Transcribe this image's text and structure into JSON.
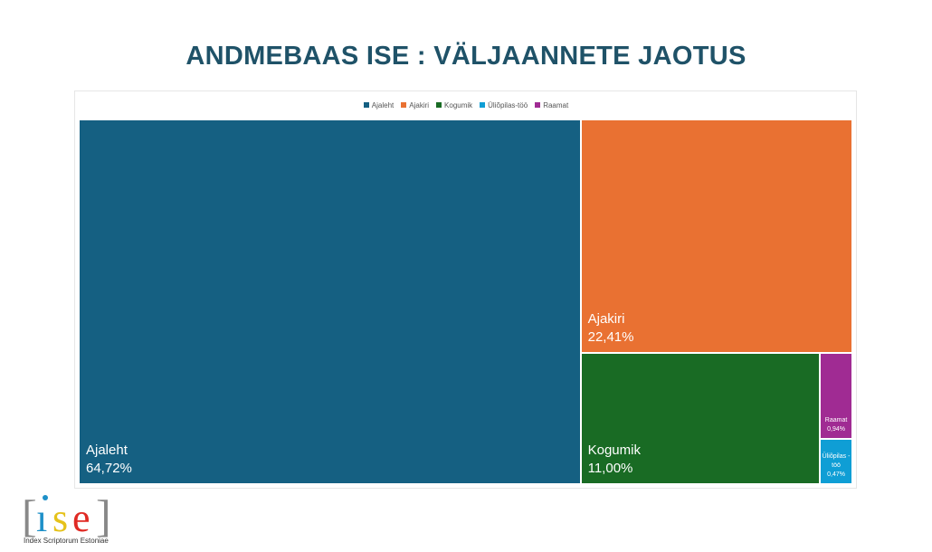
{
  "chart_data": {
    "type": "treemap",
    "title": "ANDMEBAAS ISE : VÄLJAANNETE JAOTUS",
    "legend_position": "top",
    "categories": [
      "Ajaleht",
      "Ajakiri",
      "Kogumik",
      "Üliõpilas-töö",
      "Raamat"
    ],
    "values": [
      64.72,
      22.41,
      11.0,
      0.47,
      0.94
    ],
    "labels": [
      "64,72%",
      "22,41%",
      "11,00%",
      "0,47%",
      "0,94%"
    ],
    "tile_labels": [
      "Ajaleht",
      "Ajakiri",
      "Kogumik",
      "Üliõpilas -töö",
      "Raamat"
    ],
    "colors": [
      "#156082",
      "#e97132",
      "#196b24",
      "#0f9ed5",
      "#a02b93"
    ]
  },
  "logo": {
    "text": "ise",
    "caption": "Index Scriptorum Estoniae"
  }
}
